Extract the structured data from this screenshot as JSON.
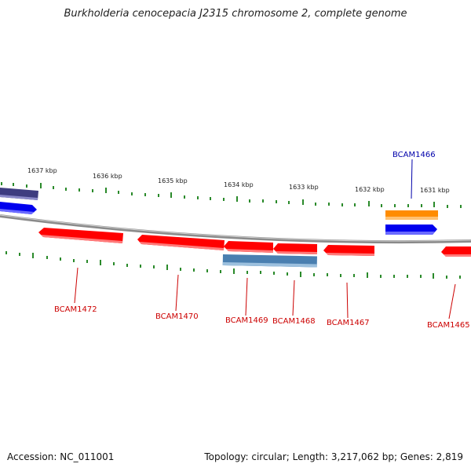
{
  "title": "Burkholderia cenocepacia J2315 chromosome 2, complete genome",
  "footer": {
    "accession": "Accession: NC_011001",
    "summary": "Topology: circular; Length: 3,217,062 bp; Genes: 2,819"
  },
  "ruler_labels": [
    "1637 kbp",
    "1636 kbp",
    "1635 kbp",
    "1634 kbp",
    "1633 kbp",
    "1632 kbp",
    "1631 kbp"
  ],
  "gene_labels": [
    {
      "id": "bcam1466",
      "text": "BCAM1466",
      "color": "#0000aa"
    },
    {
      "id": "bcam1472",
      "text": "BCAM1472",
      "color": "#cc0000"
    },
    {
      "id": "bcam1470",
      "text": "BCAM1470",
      "color": "#cc0000"
    },
    {
      "id": "bcam1469",
      "text": "BCAM1469",
      "color": "#cc0000"
    },
    {
      "id": "bcam1468",
      "text": "BCAM1468",
      "color": "#cc0000"
    },
    {
      "id": "bcam1467",
      "text": "BCAM1467",
      "color": "#cc0000"
    },
    {
      "id": "bcam1465",
      "text": "BCAM1465",
      "color": "#cc0000"
    }
  ],
  "colors": {
    "backbone": "#8a8a8a",
    "ticks": "#2a8a2a",
    "cds_red": "#ff0000",
    "cds_blue": "#0000ee",
    "cds_orange": "#ff8c00",
    "cds_steel": "#4a7fb0",
    "cds_purple": "#3e3c80"
  }
}
